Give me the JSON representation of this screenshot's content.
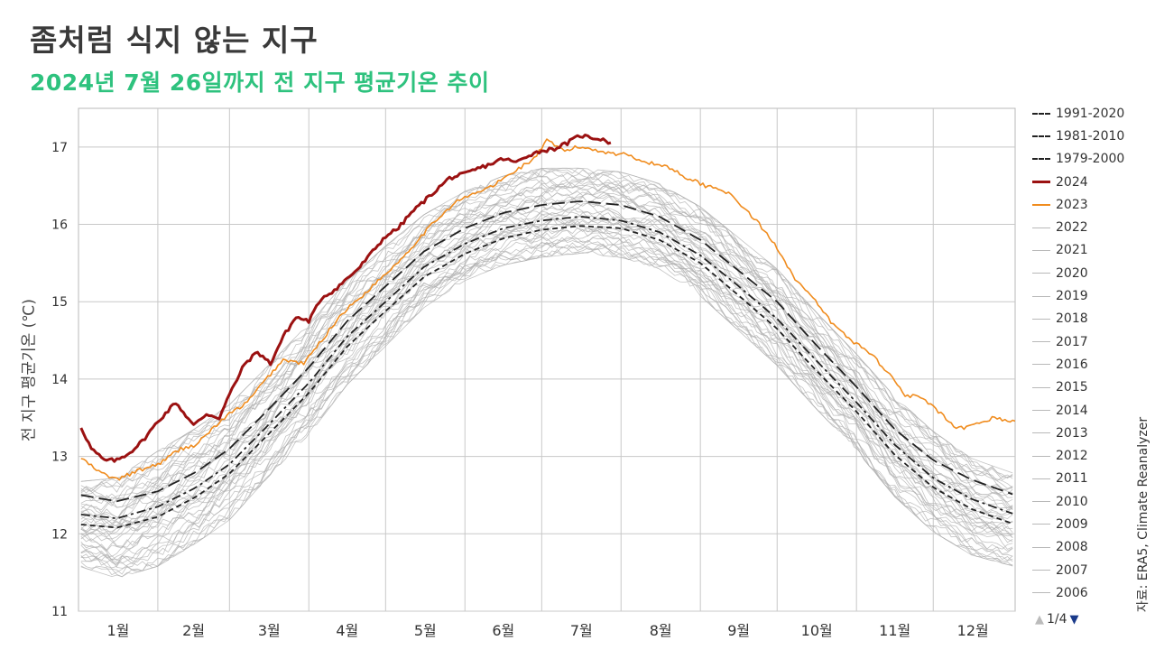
{
  "title": "좀처럼 식지 않는 지구",
  "subtitle": "2024년 7월 26일까지 전 지구 평균기온 추이",
  "source": "자료: ERA5, Climate Reanalyzer",
  "pager": {
    "label": "1/4",
    "up_icon": "triangle-up-icon",
    "down_icon": "triangle-down-icon"
  },
  "chart_data": {
    "type": "line",
    "ylabel": "전 지구 평균기온 (℃)",
    "ylim": [
      11,
      17.5
    ],
    "yticks": [
      11,
      12,
      13,
      14,
      15,
      16,
      17
    ],
    "xlim": [
      0,
      366
    ],
    "x_axis_labels": [
      "1월",
      "2월",
      "3월",
      "4월",
      "5월",
      "6월",
      "7월",
      "8월",
      "9월",
      "10월",
      "11월",
      "12월"
    ],
    "grid": true,
    "legend_placement": "right",
    "colors": {
      "normal": "#222222",
      "y2024": "#9b1111",
      "y2023": "#f08c1e",
      "past_years": "#b0b0b0"
    },
    "series": [
      {
        "name": "1991-2020",
        "style": "long-dash",
        "color": "#222222",
        "x": [
          1,
          15,
          31,
          46,
          59,
          74,
          90,
          105,
          120,
          135,
          151,
          166,
          181,
          196,
          212,
          227,
          243,
          258,
          273,
          288,
          304,
          319,
          334,
          349,
          366
        ],
        "y": [
          12.5,
          12.42,
          12.55,
          12.8,
          13.1,
          13.6,
          14.15,
          14.75,
          15.2,
          15.65,
          15.95,
          16.15,
          16.25,
          16.3,
          16.25,
          16.1,
          15.8,
          15.4,
          15.0,
          14.45,
          13.9,
          13.35,
          12.95,
          12.7,
          12.5
        ]
      },
      {
        "name": "1981-2010",
        "style": "dash-dot",
        "color": "#222222",
        "x": [
          1,
          15,
          31,
          46,
          59,
          74,
          90,
          105,
          120,
          135,
          151,
          166,
          181,
          196,
          212,
          227,
          243,
          258,
          273,
          288,
          304,
          319,
          334,
          349,
          366
        ],
        "y": [
          12.25,
          12.2,
          12.35,
          12.6,
          12.9,
          13.4,
          13.95,
          14.55,
          15.0,
          15.45,
          15.75,
          15.95,
          16.05,
          16.1,
          16.05,
          15.9,
          15.6,
          15.2,
          14.78,
          14.25,
          13.7,
          13.15,
          12.72,
          12.45,
          12.25
        ]
      },
      {
        "name": "1979-2000",
        "style": "dash",
        "color": "#222222",
        "x": [
          1,
          15,
          31,
          46,
          59,
          74,
          90,
          105,
          120,
          135,
          151,
          166,
          181,
          196,
          212,
          227,
          243,
          258,
          273,
          288,
          304,
          319,
          334,
          349,
          366
        ],
        "y": [
          12.12,
          12.08,
          12.22,
          12.48,
          12.78,
          13.28,
          13.82,
          14.42,
          14.88,
          15.32,
          15.62,
          15.82,
          15.93,
          15.98,
          15.95,
          15.8,
          15.5,
          15.08,
          14.65,
          14.12,
          13.58,
          13.02,
          12.6,
          12.32,
          12.12
        ]
      },
      {
        "name": "2024",
        "style": "solid",
        "color": "#9b1111",
        "x": [
          1,
          5,
          10,
          15,
          20,
          25,
          31,
          38,
          45,
          50,
          55,
          59,
          65,
          70,
          75,
          80,
          85,
          90,
          95,
          100,
          105,
          110,
          115,
          120,
          125,
          130,
          135,
          140,
          145,
          151,
          156,
          161,
          166,
          171,
          176,
          181,
          186,
          191,
          196,
          201,
          205,
          208
        ],
        "y": [
          13.38,
          13.1,
          12.95,
          12.95,
          13.05,
          13.2,
          13.45,
          13.7,
          13.4,
          13.55,
          13.5,
          13.8,
          14.2,
          14.35,
          14.2,
          14.55,
          14.8,
          14.75,
          15.05,
          15.15,
          15.3,
          15.45,
          15.65,
          15.85,
          15.95,
          16.15,
          16.3,
          16.45,
          16.6,
          16.65,
          16.72,
          16.78,
          16.85,
          16.8,
          16.9,
          16.95,
          16.98,
          17.05,
          17.15,
          17.12,
          17.1,
          17.05
        ]
      },
      {
        "name": "2023",
        "style": "solid",
        "color": "#f08c1e",
        "x": [
          1,
          8,
          15,
          22,
          31,
          40,
          46,
          52,
          59,
          66,
          72,
          80,
          88,
          95,
          103,
          110,
          118,
          126,
          134,
          141,
          148,
          155,
          162,
          170,
          178,
          183,
          186,
          190,
          195,
          200,
          208,
          215,
          222,
          230,
          238,
          245,
          252,
          259,
          266,
          273,
          280,
          288,
          295,
          302,
          309,
          316,
          323,
          330,
          337,
          343,
          350,
          357,
          366
        ],
        "y": [
          12.98,
          12.8,
          12.7,
          12.8,
          12.9,
          13.1,
          13.15,
          13.35,
          13.55,
          13.7,
          13.95,
          14.25,
          14.2,
          14.5,
          14.85,
          15.05,
          15.3,
          15.55,
          15.85,
          16.1,
          16.3,
          16.4,
          16.5,
          16.68,
          16.85,
          17.08,
          17.02,
          16.95,
          17.0,
          16.98,
          16.92,
          16.9,
          16.8,
          16.75,
          16.6,
          16.5,
          16.45,
          16.25,
          16.0,
          15.7,
          15.3,
          15.0,
          14.7,
          14.5,
          14.35,
          14.1,
          13.8,
          13.75,
          13.55,
          13.35,
          13.4,
          13.5,
          13.45
        ]
      }
    ],
    "past_years_legend": [
      "2022",
      "2021",
      "2020",
      "2019",
      "2018",
      "2017",
      "2016",
      "2015",
      "2014",
      "2013",
      "2012",
      "2011",
      "2010",
      "2009",
      "2008",
      "2007",
      "2006"
    ],
    "past_years_band": {
      "x": [
        1,
        15,
        31,
        46,
        59,
        74,
        90,
        105,
        120,
        135,
        151,
        166,
        181,
        196,
        212,
        227,
        243,
        258,
        273,
        288,
        304,
        319,
        334,
        349,
        366
      ],
      "min": [
        11.55,
        11.4,
        11.55,
        11.85,
        12.15,
        12.7,
        13.25,
        13.9,
        14.4,
        14.9,
        15.25,
        15.45,
        15.55,
        15.6,
        15.55,
        15.4,
        15.05,
        14.6,
        14.15,
        13.6,
        13.05,
        12.45,
        12.0,
        11.7,
        11.55
      ],
      "max": [
        12.7,
        12.75,
        13.1,
        13.4,
        13.7,
        14.2,
        14.75,
        15.3,
        15.75,
        16.15,
        16.45,
        16.65,
        16.75,
        16.75,
        16.7,
        16.55,
        16.25,
        15.85,
        15.45,
        14.9,
        14.35,
        13.8,
        13.35,
        13.0,
        12.8
      ]
    }
  }
}
